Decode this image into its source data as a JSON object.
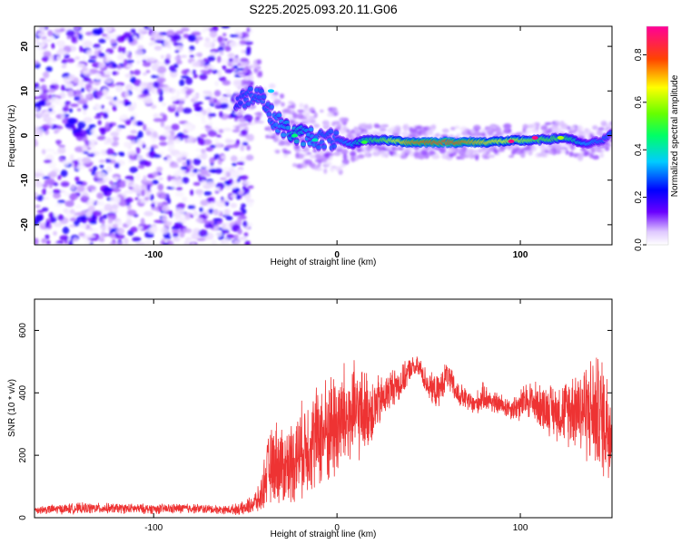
{
  "figure": {
    "title": "S225.2025.093.20.11.G06"
  },
  "chart_data": [
    {
      "type": "heatmap",
      "title": "S225.2025.093.20.11.G06",
      "xlabel": "Height of straight line (km)",
      "ylabel": "Frequency (Hz)",
      "xlim": [
        -165,
        150
      ],
      "ylim": [
        -24.5,
        24.5
      ],
      "x_ticks": [
        -100,
        0,
        100
      ],
      "y_ticks": [
        -20,
        -10,
        0,
        10,
        20
      ],
      "colorbar": {
        "label": "Normalized spectral amplitude",
        "range": [
          0,
          0.92
        ],
        "ticks": [
          0.0,
          0.2,
          0.4,
          0.6,
          0.8
        ],
        "colormap": "rainbow",
        "colors": [
          "#ffffff",
          "#5500ff",
          "#0000ff",
          "#00ffff",
          "#00ff00",
          "#ffff00",
          "#ff0000",
          "#ff00aa"
        ]
      },
      "noise_region_x": [
        -165,
        -53
      ],
      "noise_amplitude_range": [
        0.0,
        0.2
      ],
      "ridge": {
        "description_points_x": [
          -55,
          -48,
          -42,
          -37,
          -30,
          -22,
          -15,
          -8,
          0,
          8,
          15,
          25,
          40,
          60,
          80,
          95,
          110,
          125,
          135,
          145,
          150
        ],
        "frequency_hz": [
          7,
          9,
          10,
          5,
          2,
          0,
          0,
          -1,
          -1,
          -2,
          -1,
          -1,
          -1.5,
          -1.5,
          -1.5,
          -1.2,
          -1,
          -0.5,
          -2,
          -1,
          0.5
        ],
        "amplitude": [
          0.25,
          0.3,
          0.3,
          0.3,
          0.35,
          0.4,
          0.35,
          0.3,
          0.3,
          0.35,
          0.45,
          0.55,
          0.75,
          0.82,
          0.7,
          0.65,
          0.55,
          0.5,
          0.35,
          0.3,
          0.3
        ]
      }
    },
    {
      "type": "line",
      "xlabel": "Height of straight line (km)",
      "ylabel": "SNR (10 * v/v)",
      "xlim": [
        -165,
        150
      ],
      "ylim": [
        0,
        700
      ],
      "x_ticks": [
        -100,
        0,
        100
      ],
      "y_ticks": [
        0,
        200,
        400,
        600
      ],
      "line_color": "#ee3333",
      "envelope": {
        "x": [
          -165,
          -140,
          -120,
          -100,
          -80,
          -60,
          -50,
          -42,
          -38,
          -33,
          -28,
          -22,
          -15,
          -10,
          -5,
          0,
          5,
          10,
          15,
          20,
          25,
          30,
          35,
          40,
          45,
          50,
          55,
          60,
          65,
          70,
          75,
          80,
          85,
          90,
          95,
          100,
          105,
          110,
          115,
          120,
          125,
          130,
          135,
          140,
          145,
          150
        ],
        "mean": [
          25,
          30,
          30,
          28,
          30,
          25,
          30,
          60,
          150,
          180,
          160,
          200,
          240,
          260,
          280,
          300,
          320,
          330,
          340,
          350,
          380,
          420,
          430,
          480,
          480,
          420,
          400,
          460,
          400,
          380,
          360,
          390,
          370,
          360,
          350,
          360,
          380,
          360,
          350,
          340,
          340,
          360,
          350,
          340,
          320,
          300
        ],
        "spread": [
          15,
          20,
          18,
          18,
          18,
          15,
          25,
          50,
          120,
          150,
          140,
          160,
          180,
          190,
          200,
          210,
          200,
          180,
          150,
          120,
          80,
          70,
          60,
          40,
          40,
          50,
          60,
          50,
          50,
          40,
          40,
          50,
          40,
          40,
          40,
          60,
          70,
          80,
          90,
          100,
          120,
          150,
          180,
          200,
          220,
          220
        ]
      }
    }
  ]
}
